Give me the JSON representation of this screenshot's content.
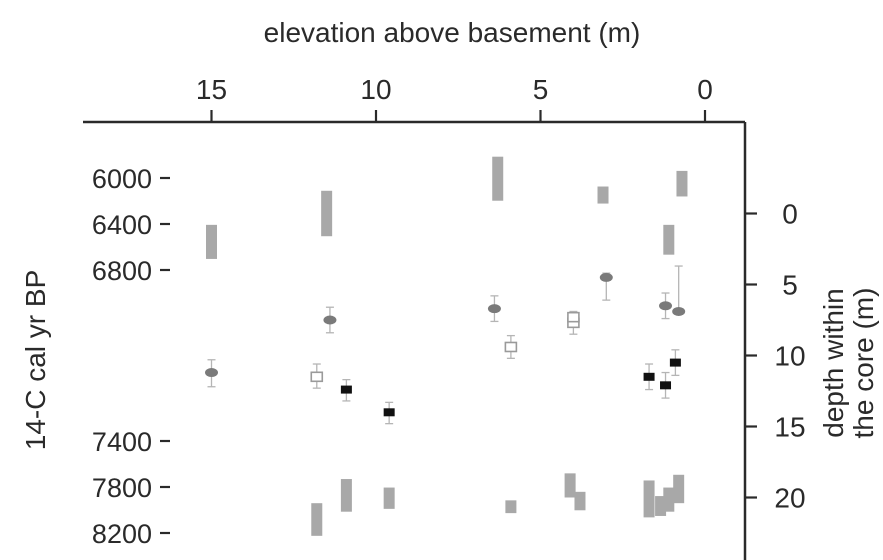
{
  "chart_data": {
    "type": "scatter",
    "title": "",
    "top_axis": {
      "label": "elevation above basement (m)",
      "ticks": [
        15,
        10,
        5,
        0
      ],
      "range": [
        -1,
        19
      ]
    },
    "left_axis": {
      "label": "14-C cal yr BP",
      "ticks": [
        6000,
        6400,
        6800,
        7400,
        7800,
        8200
      ]
    },
    "right_axis": {
      "label_line1": "depth within",
      "label_line2": "the core (m)",
      "ticks": [
        0,
        5,
        10,
        15,
        20
      ],
      "range": [
        -6,
        24
      ]
    },
    "gray_bars": [
      {
        "elev": 15.0,
        "depth_top": 0.8,
        "depth_bottom": 3.2
      },
      {
        "elev": 11.5,
        "depth_top": -1.6,
        "depth_bottom": 1.6
      },
      {
        "elev": 6.3,
        "depth_top": -4.0,
        "depth_bottom": -0.9
      },
      {
        "elev": 3.1,
        "depth_top": -1.9,
        "depth_bottom": -0.7
      },
      {
        "elev": 1.1,
        "depth_top": 0.8,
        "depth_bottom": 2.9
      },
      {
        "elev": 0.7,
        "depth_top": -3.0,
        "depth_bottom": -1.2
      },
      {
        "elev": 11.8,
        "depth_top": 20.4,
        "depth_bottom": 22.7
      },
      {
        "elev": 10.9,
        "depth_top": 18.7,
        "depth_bottom": 21.0
      },
      {
        "elev": 9.6,
        "depth_top": 19.3,
        "depth_bottom": 20.8
      },
      {
        "elev": 5.9,
        "depth_top": 20.2,
        "depth_bottom": 21.1
      },
      {
        "elev": 4.1,
        "depth_top": 18.3,
        "depth_bottom": 20.0
      },
      {
        "elev": 3.8,
        "depth_top": 19.6,
        "depth_bottom": 20.9
      },
      {
        "elev": 1.7,
        "depth_top": 18.8,
        "depth_bottom": 21.4
      },
      {
        "elev": 1.35,
        "depth_top": 19.9,
        "depth_bottom": 21.3
      },
      {
        "elev": 1.1,
        "depth_top": 19.3,
        "depth_bottom": 21.0
      },
      {
        "elev": 0.8,
        "depth_top": 18.4,
        "depth_bottom": 20.4
      }
    ],
    "gray_ellipses": [
      {
        "elev": 15.0,
        "depth": 11.2,
        "err_up": 0.9,
        "err_down": 1.0
      },
      {
        "elev": 11.4,
        "depth": 7.5,
        "err_up": 0.9,
        "err_down": 0.9
      },
      {
        "elev": 6.4,
        "depth": 6.7,
        "err_up": 0.9,
        "err_down": 0.9
      },
      {
        "elev": 3.0,
        "depth": 4.5,
        "err_up": 0.3,
        "err_down": 1.6
      },
      {
        "elev": 1.2,
        "depth": 6.5,
        "err_up": 0.9,
        "err_down": 0.9
      },
      {
        "elev": 0.8,
        "depth": 6.9,
        "err_up": 3.2,
        "err_down": 0.0
      }
    ],
    "open_squares": [
      {
        "elev": 11.8,
        "depth": 11.5,
        "err_up": 0.9,
        "err_down": 0.8
      },
      {
        "elev": 5.9,
        "depth": 9.4,
        "err_up": 0.8,
        "err_down": 0.8
      },
      {
        "elev": 4.0,
        "depth": 7.7,
        "err_up": 0.8,
        "err_down": 0.8
      },
      {
        "elev": 4.0,
        "depth": 7.3,
        "err_up": 0.0,
        "err_down": 0.0
      }
    ],
    "black_squares": [
      {
        "elev": 10.9,
        "depth": 12.4,
        "err_up": 0.7,
        "err_down": 0.8
      },
      {
        "elev": 9.6,
        "depth": 14.0,
        "err_up": 0.7,
        "err_down": 0.8
      },
      {
        "elev": 1.7,
        "depth": 11.5,
        "err_up": 0.9,
        "err_down": 0.9
      },
      {
        "elev": 1.2,
        "depth": 12.1,
        "err_up": 0.9,
        "err_down": 0.9
      },
      {
        "elev": 0.9,
        "depth": 10.5,
        "err_up": 0.9,
        "err_down": 0.9
      }
    ],
    "colors": {
      "axis": "#2a2a2a",
      "gray_fill": "#a8a8a8",
      "ellipse_fill": "#7a7a7a",
      "black_fill": "#111111",
      "open_stroke": "#9a9a9a",
      "error_bar": "#b5b5b5"
    }
  }
}
